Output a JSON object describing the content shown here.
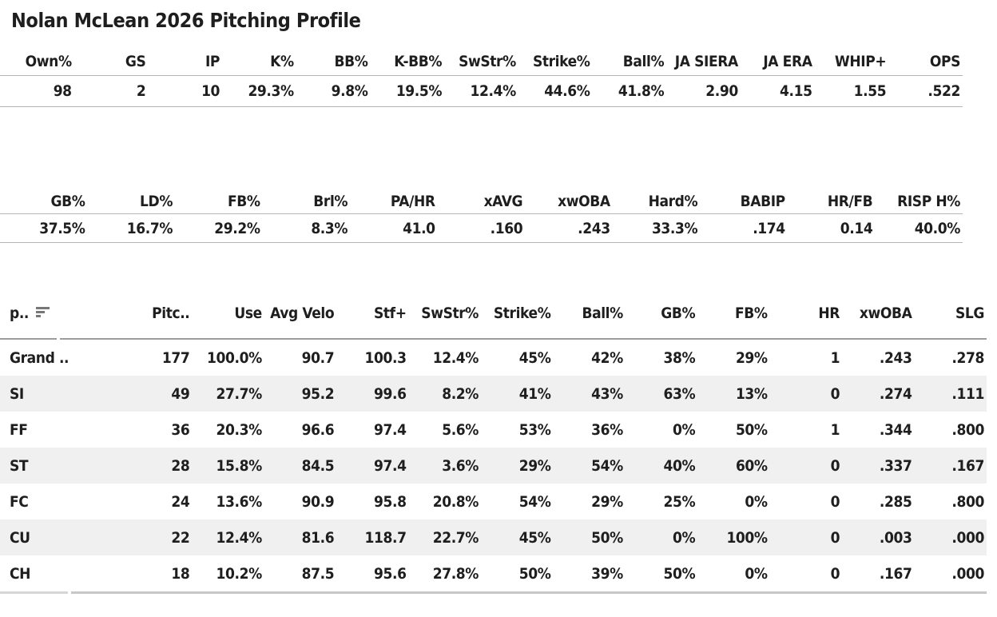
{
  "title": "Nolan McLean 2026 Pitching Profile",
  "icons": {
    "sort": "sort-descending-icon"
  },
  "colors": {
    "text": "#1e1e1e",
    "row_stripe": "#f0f0f0",
    "divider": "#b5b5b5",
    "header_divider": "#9c9c9c",
    "bottom_border": "#c7c7c7",
    "sort_icon": "#777777"
  },
  "chart_data": [
    {
      "type": "table",
      "name": "season-summary",
      "columns": [
        "Own%",
        "GS",
        "IP",
        "K%",
        "BB%",
        "K-BB%",
        "SwStr%",
        "Strike%",
        "Ball%",
        "JA SIERA",
        "JA ERA",
        "WHIP+",
        "OPS"
      ],
      "values": [
        "98",
        "2",
        "10",
        "29.3%",
        "9.8%",
        "19.5%",
        "12.4%",
        "44.6%",
        "41.8%",
        "2.90",
        "4.15",
        "1.55",
        ".522"
      ]
    },
    {
      "type": "table",
      "name": "batted-ball",
      "columns": [
        "GB%",
        "LD%",
        "FB%",
        "Brl%",
        "PA/HR",
        "xAVG",
        "xwOBA",
        "Hard%",
        "BABIP",
        "HR/FB",
        "RISP H%"
      ],
      "values": [
        "37.5%",
        "16.7%",
        "29.2%",
        "8.3%",
        "41.0",
        ".160",
        ".243",
        "33.3%",
        ".174",
        "0.14",
        "40.0%"
      ]
    },
    {
      "type": "table",
      "name": "pitch-mix",
      "columns": [
        "p..",
        "Pitc..",
        "Use",
        "Avg Velo",
        "Stf+",
        "SwStr%",
        "Strike%",
        "Ball%",
        "GB%",
        "FB%",
        "HR",
        "xwOBA",
        "SLG"
      ],
      "rows": [
        {
          "pitch": "Grand ..",
          "cells": [
            "177",
            "100.0%",
            "90.7",
            "100.3",
            "12.4%",
            "45%",
            "42%",
            "38%",
            "29%",
            "1",
            ".243",
            ".278"
          ]
        },
        {
          "pitch": "SI",
          "cells": [
            "49",
            "27.7%",
            "95.2",
            "99.6",
            "8.2%",
            "41%",
            "43%",
            "63%",
            "13%",
            "0",
            ".274",
            ".111"
          ]
        },
        {
          "pitch": "FF",
          "cells": [
            "36",
            "20.3%",
            "96.6",
            "97.4",
            "5.6%",
            "53%",
            "36%",
            "0%",
            "50%",
            "1",
            ".344",
            ".800"
          ]
        },
        {
          "pitch": "ST",
          "cells": [
            "28",
            "15.8%",
            "84.5",
            "97.4",
            "3.6%",
            "29%",
            "54%",
            "40%",
            "60%",
            "0",
            ".337",
            ".167"
          ]
        },
        {
          "pitch": "FC",
          "cells": [
            "24",
            "13.6%",
            "90.9",
            "95.8",
            "20.8%",
            "54%",
            "29%",
            "25%",
            "0%",
            "0",
            ".285",
            ".800"
          ]
        },
        {
          "pitch": "CU",
          "cells": [
            "22",
            "12.4%",
            "81.6",
            "118.7",
            "22.7%",
            "45%",
            "50%",
            "0%",
            "100%",
            "0",
            ".003",
            ".000"
          ]
        },
        {
          "pitch": "CH",
          "cells": [
            "18",
            "10.2%",
            "87.5",
            "95.6",
            "27.8%",
            "50%",
            "39%",
            "50%",
            "0%",
            "0",
            ".167",
            ".000"
          ]
        }
      ]
    }
  ]
}
